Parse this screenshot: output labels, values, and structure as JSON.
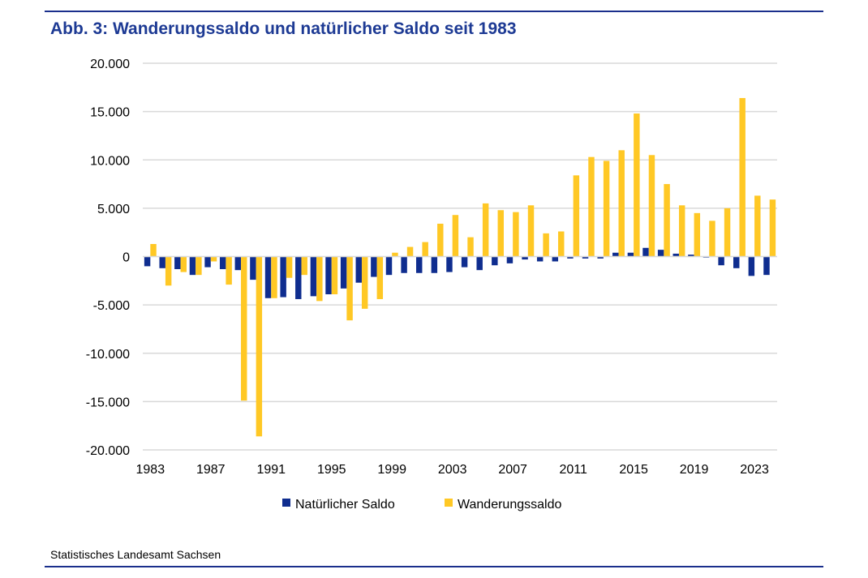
{
  "chart_data": {
    "type": "bar",
    "title": "Abb. 3: Wanderungssaldo und natürlicher Saldo seit 1983",
    "source": "Statistisches Landesamt Sachsen",
    "xlabel": "",
    "ylabel": "",
    "ylim": [
      -20000,
      20000
    ],
    "yticks": [
      "20.000",
      "15.000",
      "10.000",
      "5.000",
      "0",
      "-5.000",
      "-10.000",
      "-15.000",
      "-20.000"
    ],
    "ytick_values": [
      20000,
      15000,
      10000,
      5000,
      0,
      -5000,
      -10000,
      -15000,
      -20000
    ],
    "xtick_labels": [
      "1983",
      "1987",
      "1991",
      "1995",
      "1999",
      "2003",
      "2007",
      "2011",
      "2015",
      "2019",
      "2023"
    ],
    "grid": true,
    "legend_position": "bottom",
    "categories": [
      1983,
      1984,
      1985,
      1986,
      1987,
      1988,
      1989,
      1990,
      1991,
      1992,
      1993,
      1994,
      1995,
      1996,
      1997,
      1998,
      1999,
      2000,
      2001,
      2002,
      2003,
      2004,
      2005,
      2006,
      2007,
      2008,
      2009,
      2010,
      2011,
      2012,
      2013,
      2014,
      2015,
      2016,
      2017,
      2018,
      2019,
      2020,
      2021,
      2022,
      2023,
      2024
    ],
    "series": [
      {
        "name": "Natürlicher Saldo",
        "color": "#0f2d8f",
        "values": [
          -1000,
          -1200,
          -1300,
          -1900,
          -1100,
          -1300,
          -1400,
          -2400,
          -4300,
          -4200,
          -4400,
          -4100,
          -3900,
          -3300,
          -2700,
          -2100,
          -1900,
          -1700,
          -1700,
          -1700,
          -1600,
          -1100,
          -1400,
          -900,
          -700,
          -300,
          -500,
          -500,
          -200,
          -200,
          -200,
          400,
          400,
          900,
          700,
          300,
          200,
          -100,
          -900,
          -1200,
          -2000,
          -1900
        ]
      },
      {
        "name": "Wanderungssaldo",
        "color": "#ffc825",
        "values": [
          1300,
          -3000,
          -1600,
          -1900,
          -500,
          -2900,
          -14900,
          -18600,
          -4300,
          -2200,
          -1900,
          -4600,
          -3900,
          -6600,
          -5400,
          -4400,
          400,
          1000,
          1500,
          3400,
          4300,
          2000,
          5500,
          4800,
          4600,
          5300,
          2400,
          2600,
          8400,
          10300,
          9900,
          11000,
          14800,
          10500,
          7500,
          5300,
          4500,
          3700,
          5000,
          16400,
          6300,
          5900
        ]
      }
    ]
  }
}
